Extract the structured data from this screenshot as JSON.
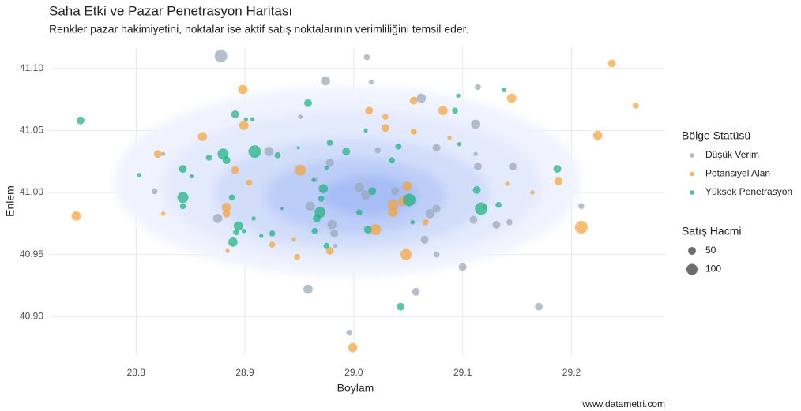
{
  "chart_data": {
    "type": "scatter",
    "title": "Saha Etki ve Pazar Penetrasyon Haritası",
    "subtitle": "Renkler pazar hakimiyetini, noktalar ise aktif satış noktalarının verimliliğini temsil eder.",
    "x_label": "Boylam",
    "y_label": "Enlem",
    "caption": "www.datametri.com",
    "legend_title": "Bölge Statüsü",
    "legend_position": "right",
    "size_legend": {
      "title": "Satış Hacmi",
      "values": [
        50,
        100
      ]
    },
    "xlim": [
      28.72,
      29.286
    ],
    "ylim": [
      40.869,
      41.117
    ],
    "xticks": [
      28.8,
      28.9,
      {
        "value": 29,
        "label": "29.0"
      },
      29.1,
      29.2
    ],
    "yticks": [
      {
        "value": 40.9,
        "label": "40.90"
      },
      40.95,
      {
        "value": 41,
        "label": "41.00"
      },
      41.05,
      {
        "value": 41.1,
        "label": "41.10"
      }
    ],
    "grid": true,
    "series": [
      {
        "name": "Düşük Verim",
        "color": "#9aa8b8",
        "x": [
          28.878,
          29.012,
          28.974,
          29.016,
          29.114,
          29.062,
          28.951,
          29.112,
          28.922,
          29.076,
          29.112,
          28.978,
          29.146,
          29.114,
          28.817,
          29.005,
          29.011,
          29.038,
          28.96,
          29.07,
          28.875,
          28.98,
          28.982,
          29.065,
          29.076,
          29.11,
          29.131,
          29.1,
          28.958,
          29.057,
          29.17,
          28.996,
          29.209,
          29.143,
          28.825,
          28.983,
          29.076,
          29.022,
          28.965
        ],
        "y": [
          41.11,
          41.109,
          41.09,
          41.089,
          41.085,
          41.076,
          41.061,
          41.055,
          41.033,
          41.036,
          41.031,
          41.024,
          41.021,
          41.021,
          41.001,
          41.004,
          40.998,
          41.001,
          40.989,
          40.983,
          40.979,
          40.974,
          40.967,
          40.962,
          40.95,
          40.978,
          40.974,
          40.94,
          40.922,
          40.92,
          40.908,
          40.887,
          40.989,
          40.976,
          41.031,
          40.957,
          40.987,
          41.034,
          41.01
        ],
        "size": [
          130,
          30,
          70,
          20,
          30,
          70,
          15,
          70,
          70,
          50,
          15,
          50,
          50,
          50,
          30,
          70,
          70,
          50,
          70,
          70,
          70,
          70,
          50,
          50,
          30,
          50,
          50,
          50,
          70,
          50,
          50,
          30,
          30,
          30,
          15,
          15,
          50,
          30,
          15
        ]
      },
      {
        "name": "Potansiyel Alan",
        "color": "#f5a33a",
        "x": [
          29.237,
          28.898,
          29.014,
          29.055,
          29.145,
          29.259,
          29.029,
          29.082,
          28.899,
          29.029,
          29.055,
          28.861,
          29.088,
          29.224,
          28.82,
          28.951,
          28.891,
          28.904,
          29.049,
          29.141,
          29.188,
          29.164,
          28.745,
          28.825,
          28.883,
          28.883,
          29.036,
          29.036,
          29.045,
          29.02,
          29.066,
          29.12,
          29.209,
          28.945,
          28.925,
          28.978,
          28.948,
          29.048,
          28.999,
          28.884
        ],
        "y": [
          41.104,
          41.083,
          41.066,
          41.074,
          41.076,
          41.07,
          41.061,
          41.066,
          41.054,
          41.052,
          41.049,
          41.045,
          41.044,
          41.046,
          41.031,
          41.018,
          41.018,
          41.008,
          41.005,
          41.007,
          41.009,
          41.0,
          40.981,
          40.983,
          40.988,
          40.983,
          40.99,
          40.984,
          40.993,
          40.97,
          40.976,
          40.988,
          40.972,
          40.962,
          40.958,
          40.953,
          40.948,
          40.95,
          40.875,
          40.953
        ],
        "size": [
          50,
          70,
          50,
          50,
          70,
          30,
          30,
          70,
          70,
          50,
          30,
          70,
          15,
          70,
          50,
          100,
          50,
          30,
          70,
          15,
          50,
          15,
          70,
          15,
          70,
          50,
          100,
          70,
          70,
          100,
          30,
          15,
          130,
          15,
          30,
          50,
          30,
          100,
          70,
          15
        ]
      },
      {
        "name": "Yüksek Penetrasyon",
        "color": "#1db37f",
        "x": [
          28.749,
          28.803,
          28.958,
          28.891,
          28.901,
          28.907,
          29.093,
          29.096,
          29.138,
          29.011,
          28.978,
          28.993,
          28.909,
          28.88,
          28.883,
          28.867,
          28.843,
          28.851,
          28.93,
          28.949,
          29.035,
          29.041,
          29.097,
          29.187,
          28.975,
          28.972,
          28.97,
          28.843,
          28.888,
          28.843,
          28.963,
          28.934,
          28.969,
          28.966,
          28.908,
          28.925,
          28.894,
          28.892,
          28.899,
          28.915,
          28.889,
          28.975,
          29.005,
          29.013,
          29.017,
          29.051,
          29.054,
          29.113,
          29.117,
          29.133,
          28.964,
          29.043
        ],
        "y": [
          41.058,
          41.014,
          41.072,
          41.063,
          41.059,
          41.059,
          41.066,
          41.078,
          41.083,
          41.05,
          41.04,
          41.033,
          41.033,
          41.031,
          41.026,
          41.028,
          41.019,
          41.013,
          41.03,
          41.036,
          41.026,
          41.037,
          41.039,
          41.019,
          41.02,
          41.003,
          40.995,
          40.996,
          40.996,
          40.989,
          41.01,
          40.987,
          40.984,
          40.979,
          40.979,
          40.967,
          40.973,
          40.968,
          40.969,
          40.965,
          40.96,
          40.957,
          40.984,
          40.97,
          41.001,
          40.994,
          40.976,
          41.002,
          40.987,
          40.99,
          40.969,
          40.908
        ],
        "size": [
          50,
          15,
          50,
          50,
          15,
          15,
          30,
          15,
          15,
          15,
          30,
          50,
          130,
          100,
          50,
          30,
          50,
          15,
          30,
          8,
          30,
          30,
          15,
          50,
          15,
          70,
          30,
          100,
          30,
          30,
          15,
          8,
          100,
          50,
          15,
          30,
          70,
          30,
          15,
          15,
          70,
          30,
          30,
          50,
          50,
          130,
          15,
          50,
          130,
          30,
          30,
          50
        ]
      }
    ]
  }
}
